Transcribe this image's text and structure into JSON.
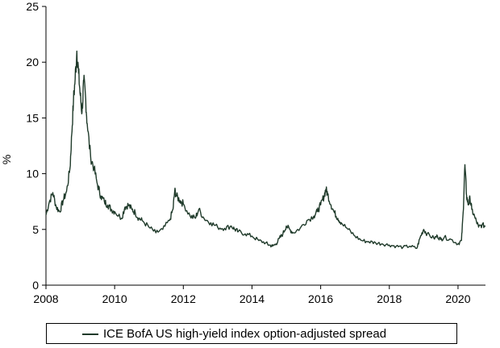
{
  "chart_data": {
    "type": "line",
    "title": "",
    "xlabel": "",
    "ylabel": "%",
    "xlim": [
      2008,
      2020.8
    ],
    "ylim": [
      0,
      25
    ],
    "x_ticks": [
      "2008",
      "2010",
      "2012",
      "2014",
      "2016",
      "2018",
      "2020"
    ],
    "y_ticks": [
      "0",
      "5",
      "10",
      "15",
      "20",
      "25"
    ],
    "grid": false,
    "legend": "bottom",
    "colors": {
      "series": "#1f3a2a"
    },
    "series": [
      {
        "name": "ICE BofA US high-yield index option-adjusted spread",
        "x": [
          2008.0,
          2008.1,
          2008.2,
          2008.3,
          2008.4,
          2008.5,
          2008.6,
          2008.7,
          2008.75,
          2008.8,
          2008.85,
          2008.9,
          2008.95,
          2009.0,
          2009.05,
          2009.1,
          2009.15,
          2009.2,
          2009.3,
          2009.4,
          2009.5,
          2009.6,
          2009.7,
          2009.8,
          2009.9,
          2010.0,
          2010.2,
          2010.3,
          2010.4,
          2010.5,
          2010.6,
          2010.7,
          2010.8,
          2011.0,
          2011.2,
          2011.4,
          2011.6,
          2011.7,
          2011.75,
          2011.8,
          2011.9,
          2012.0,
          2012.2,
          2012.35,
          2012.45,
          2012.6,
          2012.8,
          2013.0,
          2013.2,
          2013.4,
          2013.5,
          2013.6,
          2013.8,
          2014.0,
          2014.2,
          2014.4,
          2014.5,
          2014.6,
          2014.7,
          2014.8,
          2014.9,
          2015.0,
          2015.1,
          2015.2,
          2015.4,
          2015.6,
          2015.8,
          2015.9,
          2016.0,
          2016.1,
          2016.15,
          2016.2,
          2016.3,
          2016.4,
          2016.5,
          2016.6,
          2016.8,
          2017.0,
          2017.2,
          2017.4,
          2017.6,
          2017.8,
          2018.0,
          2018.2,
          2018.4,
          2018.6,
          2018.8,
          2018.9,
          2019.0,
          2019.1,
          2019.3,
          2019.4,
          2019.5,
          2019.6,
          2019.8,
          2020.0,
          2020.1,
          2020.15,
          2020.2,
          2020.25,
          2020.3,
          2020.35,
          2020.4,
          2020.5,
          2020.6,
          2020.7,
          2020.8
        ],
        "values": [
          6.3,
          7.5,
          8.3,
          7.0,
          6.6,
          7.6,
          8.4,
          10.5,
          13.5,
          16.5,
          18.5,
          21.0,
          19.0,
          17.0,
          15.5,
          18.3,
          17.0,
          14.5,
          11.5,
          10.5,
          9.0,
          8.0,
          7.5,
          7.2,
          6.8,
          6.6,
          6.0,
          7.0,
          7.2,
          6.8,
          6.5,
          6.0,
          5.8,
          5.2,
          4.7,
          5.0,
          5.8,
          6.8,
          8.5,
          8.0,
          7.6,
          7.3,
          6.2,
          6.0,
          6.8,
          6.0,
          5.6,
          5.2,
          5.1,
          5.3,
          5.0,
          4.8,
          4.6,
          4.4,
          4.0,
          3.8,
          3.6,
          3.5,
          3.7,
          4.2,
          4.6,
          5.3,
          5.0,
          4.7,
          5.1,
          5.8,
          6.2,
          6.6,
          7.2,
          8.0,
          8.6,
          8.2,
          7.2,
          6.5,
          6.0,
          5.6,
          5.0,
          4.4,
          4.0,
          3.9,
          3.8,
          3.7,
          3.6,
          3.5,
          3.4,
          3.5,
          3.3,
          4.3,
          5.0,
          4.6,
          4.2,
          4.4,
          4.1,
          4.3,
          4.1,
          3.7,
          4.0,
          6.5,
          10.8,
          8.0,
          7.2,
          7.8,
          6.8,
          6.0,
          5.2,
          5.4,
          5.3
        ]
      }
    ]
  }
}
